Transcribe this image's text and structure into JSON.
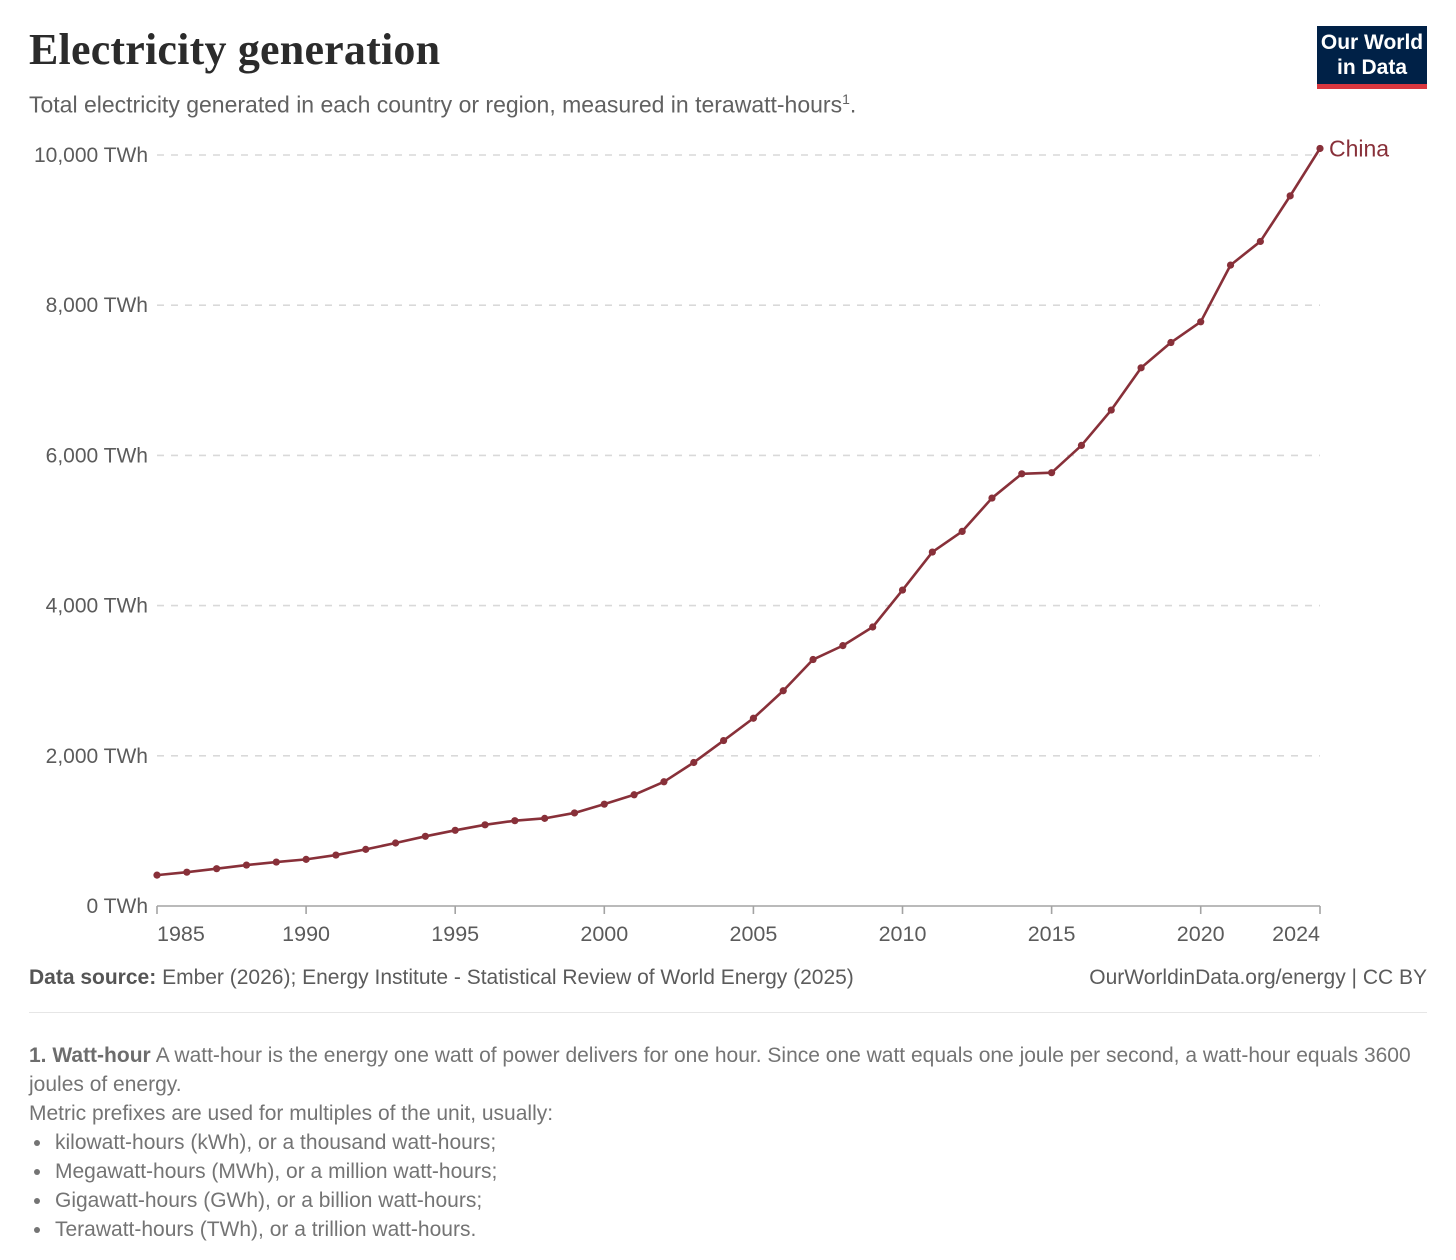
{
  "header": {
    "title": "Electricity generation",
    "subtitle": {
      "text": "Total electricity generated in each country or region, measured in terawatt-hours",
      "sup": "1",
      "period": "."
    },
    "logo": {
      "line1": "Our World",
      "line2": "in Data"
    }
  },
  "colors": {
    "series_china": "#883039",
    "logo_bg": "#002147",
    "logo_stripe": "#d9363e",
    "grid": "#d9d9d9",
    "axis": "#a3a3a3",
    "text_axis": "#5b5b5b"
  },
  "chart_data": {
    "type": "line",
    "title": "Electricity generation",
    "unit": "TWh",
    "xlim": [
      1985,
      2024
    ],
    "ylim": [
      0,
      10000
    ],
    "grid": "horizontal-dashed",
    "legend_position": "end-of-line-label",
    "x_ticks": [
      {
        "year": 1985,
        "label": "1985"
      },
      {
        "year": 1990,
        "label": "1990"
      },
      {
        "year": 1995,
        "label": "1995"
      },
      {
        "year": 2000,
        "label": "2000"
      },
      {
        "year": 2005,
        "label": "2005"
      },
      {
        "year": 2010,
        "label": "2010"
      },
      {
        "year": 2015,
        "label": "2015"
      },
      {
        "year": 2020,
        "label": "2020"
      },
      {
        "year": 2024,
        "label": "2024"
      }
    ],
    "y_ticks": [
      {
        "value": 0,
        "label": "0 TWh"
      },
      {
        "value": 2000,
        "label": "2,000 TWh"
      },
      {
        "value": 4000,
        "label": "4,000 TWh"
      },
      {
        "value": 6000,
        "label": "6,000 TWh"
      },
      {
        "value": 8000,
        "label": "8,000 TWh"
      },
      {
        "value": 10000,
        "label": "10,000 TWh"
      }
    ],
    "series": [
      {
        "name": "China",
        "color": "#883039",
        "x": [
          1985,
          1986,
          1987,
          1988,
          1989,
          1990,
          1991,
          1992,
          1993,
          1994,
          1995,
          1996,
          1997,
          1998,
          1999,
          2000,
          2001,
          2002,
          2003,
          2004,
          2005,
          2006,
          2007,
          2008,
          2009,
          2010,
          2011,
          2012,
          2013,
          2014,
          2015,
          2016,
          2017,
          2018,
          2019,
          2020,
          2021,
          2022,
          2023,
          2024
        ],
        "values": [
          411,
          450,
          497,
          545,
          585,
          621,
          678,
          754,
          839,
          928,
          1008,
          1081,
          1136,
          1167,
          1239,
          1356,
          1481,
          1654,
          1911,
          2203,
          2500,
          2866,
          3282,
          3467,
          3715,
          4207,
          4713,
          4988,
          5432,
          5755,
          5770,
          6133,
          6604,
          7166,
          7503,
          7779,
          8534,
          8849,
          9456,
          10087
        ]
      }
    ]
  },
  "footer": {
    "datasource_label": "Data source:",
    "datasource_text": "Ember (2026); Energy Institute - Statistical Review of World Energy (2025)",
    "license_text": "OurWorldinData.org/energy | CC BY"
  },
  "footnote": {
    "lead": "1. Watt-hour",
    "body": "A watt-hour is the energy one watt of power delivers for one hour. Since one watt equals one joule per second, a watt-hour equals 3600 joules of energy.",
    "line2": "Metric prefixes are used for multiples of the unit, usually:",
    "bullets": [
      "kilowatt-hours (kWh), or a thousand watt-hours;",
      "Megawatt-hours (MWh), or a million watt-hours;",
      "Gigawatt-hours (GWh), or a billion watt-hours;",
      "Terawatt-hours (TWh), or a trillion watt-hours."
    ]
  }
}
